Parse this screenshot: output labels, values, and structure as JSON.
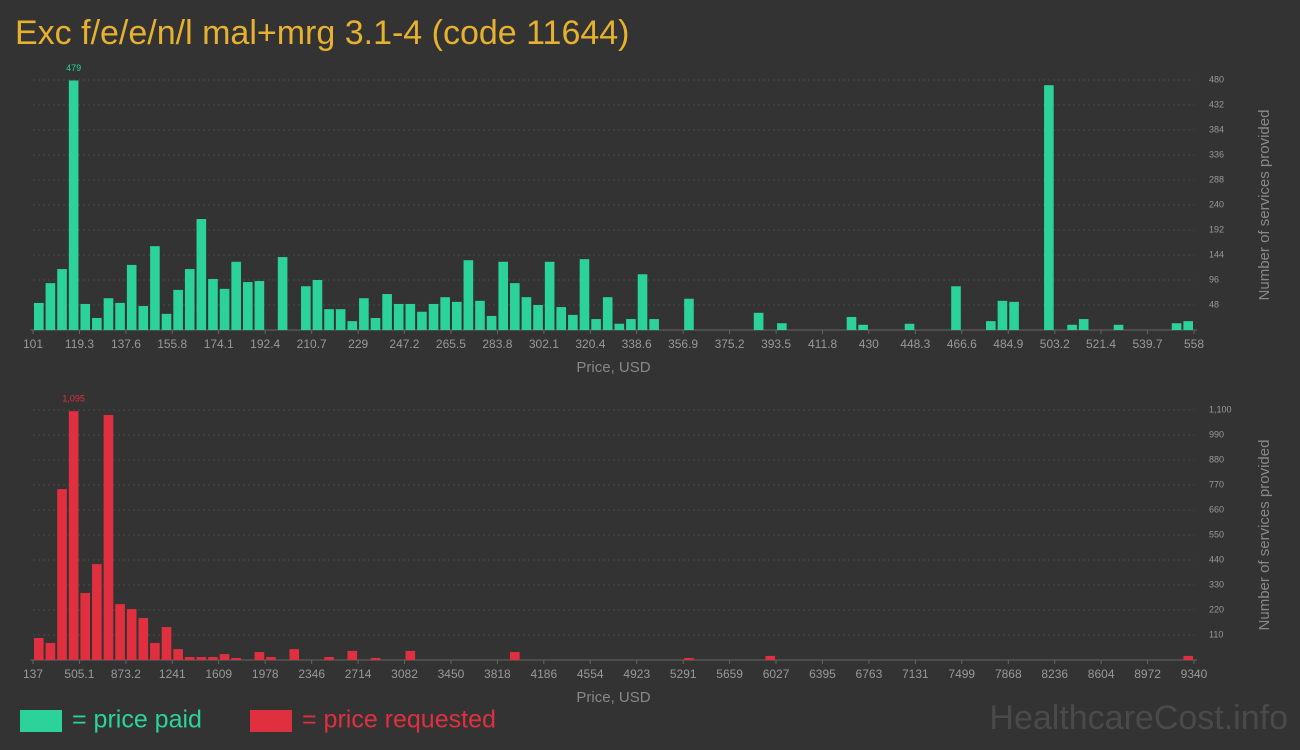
{
  "title": "Exc f/e/e/n/l mal+mrg 3.1-4 (code 11644)",
  "watermark": "HealthcareCost.info",
  "chart_data": [
    {
      "type": "histogram",
      "xlabel": "Price, USD",
      "ylabel": "Number of services provided",
      "grid": true,
      "xlim": [
        101,
        558
      ],
      "ylim": [
        0,
        480
      ],
      "xticks": [
        101,
        119.3,
        137.6,
        155.8,
        174.1,
        192.4,
        210.7,
        229,
        247.2,
        265.5,
        283.8,
        302.1,
        320.4,
        338.6,
        356.9,
        375.2,
        393.5,
        411.8,
        430,
        448.3,
        466.6,
        484.9,
        503.2,
        521.4,
        539.7,
        558
      ],
      "yticks": [
        48,
        96,
        144,
        192,
        240,
        288,
        336,
        384,
        432,
        480
      ],
      "bins": [
        101,
        105.57,
        110.14,
        114.71,
        119.28,
        123.85,
        128.42,
        132.99,
        137.56,
        142.13,
        146.7,
        151.27,
        155.84,
        160.41,
        164.98,
        169.55,
        174.12,
        178.69,
        183.26,
        187.83,
        192.4,
        196.97,
        201.54,
        206.11,
        210.68,
        215.25,
        219.82,
        224.39,
        228.96,
        233.53,
        238.1,
        242.67,
        247.24,
        251.81,
        256.38,
        260.95,
        265.52,
        270.09,
        274.66,
        279.23,
        283.8,
        288.37,
        292.94,
        297.51,
        302.08,
        306.65,
        311.22,
        315.79,
        320.36,
        324.93,
        329.5,
        334.07,
        338.64,
        343.21,
        347.78,
        352.35,
        356.92,
        361.49,
        366.06,
        370.63,
        375.2,
        379.77,
        384.34,
        388.91,
        393.48,
        398.05,
        402.62,
        407.19,
        411.76,
        416.33,
        420.9,
        425.47,
        430.04,
        434.61,
        439.18,
        443.75,
        448.32,
        452.89,
        457.46,
        462.03,
        466.6,
        471.17,
        475.74,
        480.31,
        484.88,
        489.45,
        494.02,
        498.59,
        503.16,
        507.73,
        512.3,
        516.87,
        521.44,
        526.01,
        530.58,
        535.15,
        539.72,
        544.29,
        548.86,
        553.43,
        558
      ],
      "series": [
        {
          "name": "= price paid",
          "color": "#2bd39b",
          "values": [
            52,
            90,
            117,
            479,
            50,
            23,
            61,
            52,
            125,
            46,
            161,
            31,
            77,
            117,
            213,
            98,
            79,
            131,
            92,
            94,
            0,
            140,
            0,
            84,
            96,
            40,
            40,
            17,
            61,
            23,
            69,
            50,
            50,
            35,
            50,
            63,
            54,
            134,
            56,
            27,
            131,
            90,
            63,
            48,
            131,
            44,
            29,
            136,
            21,
            63,
            12,
            21,
            107,
            21,
            0,
            0,
            60,
            0,
            0,
            0,
            0,
            0,
            33,
            0,
            13,
            0,
            0,
            0,
            0,
            0,
            25,
            10,
            0,
            0,
            0,
            12,
            0,
            0,
            0,
            84,
            0,
            0,
            17,
            56,
            54,
            0,
            0,
            470,
            0,
            10,
            21,
            0,
            0,
            10,
            0,
            0,
            0,
            0,
            13,
            17
          ],
          "value_labels": [
            null,
            null,
            null,
            "479",
            null,
            null,
            null,
            null,
            null,
            null,
            null,
            null,
            null,
            null,
            null,
            null,
            null,
            null,
            null,
            null,
            null,
            null,
            null,
            null,
            null,
            null,
            null,
            null,
            null,
            null,
            null,
            null,
            null,
            null,
            null,
            null,
            null,
            null,
            null,
            null,
            null,
            null,
            null,
            null,
            null,
            null,
            null,
            null,
            null,
            null,
            null,
            null,
            null,
            null,
            null,
            null,
            null,
            null,
            null,
            null,
            null,
            null,
            null,
            null,
            null,
            null,
            null,
            null,
            null,
            null,
            null,
            null,
            null,
            null,
            null,
            null,
            null,
            null,
            null,
            null,
            null,
            null,
            null,
            null,
            null,
            null,
            null,
            null,
            null,
            null,
            null,
            null,
            null,
            null,
            null,
            null,
            null,
            null,
            null,
            null
          ]
        }
      ]
    },
    {
      "type": "histogram",
      "xlabel": "Price, USD",
      "ylabel": "Number of services provided",
      "grid": true,
      "xlim": [
        137,
        9340
      ],
      "ylim": [
        0,
        1100
      ],
      "xticks": [
        137,
        505.1,
        873.2,
        1241,
        1609,
        1978,
        2346,
        2714,
        3082,
        3450,
        3818,
        4186,
        4554,
        4923,
        5291,
        5659,
        6027,
        6395,
        6763,
        7131,
        7499,
        7868,
        8236,
        8604,
        8972,
        9340
      ],
      "yticks": [
        110,
        220,
        330,
        440,
        550,
        660,
        770,
        880,
        990,
        {
          "value": 1100,
          "label": "1,100"
        }
      ],
      "bins": [
        137,
        229.03,
        321.06,
        413.09,
        505.12,
        597.15,
        689.18,
        781.21,
        873.24,
        965.27,
        1057.3,
        1149.33,
        1241.36,
        1333.39,
        1425.42,
        1517.45,
        1609.48,
        1701.51,
        1793.54,
        1885.57,
        1977.6,
        2069.63,
        2161.66,
        2253.69,
        2345.72,
        2437.75,
        2529.78,
        2621.81,
        2713.84,
        2805.87,
        2897.9,
        2989.93,
        3081.96,
        3173.99,
        3266.02,
        3358.05,
        3450.08,
        3542.11,
        3634.14,
        3726.17,
        3818.2,
        3910.23,
        4002.26,
        4094.29,
        4186.32,
        4278.35,
        4370.38,
        4462.41,
        4554.44,
        4646.47,
        4738.5,
        4830.53,
        4922.56,
        5014.59,
        5106.62,
        5198.65,
        5290.68,
        5382.71,
        5474.74,
        5566.77,
        5658.8,
        5750.83,
        5842.86,
        5934.89,
        6026.92,
        6118.95,
        6210.98,
        6303.01,
        6395.04,
        6487.07,
        6579.1,
        6671.13,
        6763.16,
        6855.19,
        6947.22,
        7039.25,
        7131.28,
        7223.31,
        7315.34,
        7407.37,
        7499.4,
        7591.43,
        7683.46,
        7775.49,
        7867.52,
        7959.55,
        8051.58,
        8143.61,
        8235.64,
        8327.67,
        8419.7,
        8511.73,
        8603.76,
        8695.79,
        8787.82,
        8879.85,
        8971.88,
        9063.91,
        9155.94,
        9247.97,
        9340
      ],
      "series": [
        {
          "name": "= price requested",
          "color": "#e0303f",
          "values": [
            97,
            75,
            752,
            1095,
            295,
            422,
            1078,
            246,
            224,
            185,
            75,
            145,
            48,
            13,
            13,
            13,
            26,
            9,
            0,
            35,
            13,
            0,
            48,
            0,
            0,
            13,
            0,
            40,
            0,
            9,
            0,
            0,
            40,
            0,
            0,
            0,
            0,
            0,
            0,
            0,
            0,
            35,
            0,
            0,
            0,
            0,
            0,
            0,
            0,
            0,
            0,
            0,
            0,
            0,
            0,
            0,
            9,
            0,
            0,
            0,
            0,
            0,
            0,
            18,
            0,
            0,
            0,
            0,
            0,
            0,
            0,
            0,
            0,
            0,
            0,
            0,
            0,
            0,
            0,
            0,
            0,
            0,
            0,
            0,
            0,
            0,
            0,
            0,
            0,
            0,
            0,
            0,
            0,
            0,
            0,
            0,
            0,
            0,
            0,
            18
          ],
          "value_labels": [
            null,
            null,
            null,
            "1,095",
            null,
            null,
            null,
            null,
            null,
            null,
            null,
            null,
            null,
            null,
            null,
            null,
            null,
            null,
            null,
            null,
            null,
            null,
            null,
            null,
            null,
            null,
            null,
            null,
            null,
            null,
            null,
            null,
            null,
            null,
            null,
            null,
            null,
            null,
            null,
            null,
            null,
            null,
            null,
            null,
            null,
            null,
            null,
            null,
            null,
            null,
            null,
            null,
            null,
            null,
            null,
            null,
            null,
            null,
            null,
            null,
            null,
            null,
            null,
            null,
            null,
            null,
            null,
            null,
            null,
            null,
            null,
            null,
            null,
            null,
            null,
            null,
            null,
            null,
            null,
            null,
            null,
            null,
            null,
            null,
            null,
            null,
            null,
            null,
            null,
            null,
            null,
            null,
            null,
            null,
            null,
            null,
            null,
            null,
            null,
            null
          ]
        }
      ]
    }
  ]
}
